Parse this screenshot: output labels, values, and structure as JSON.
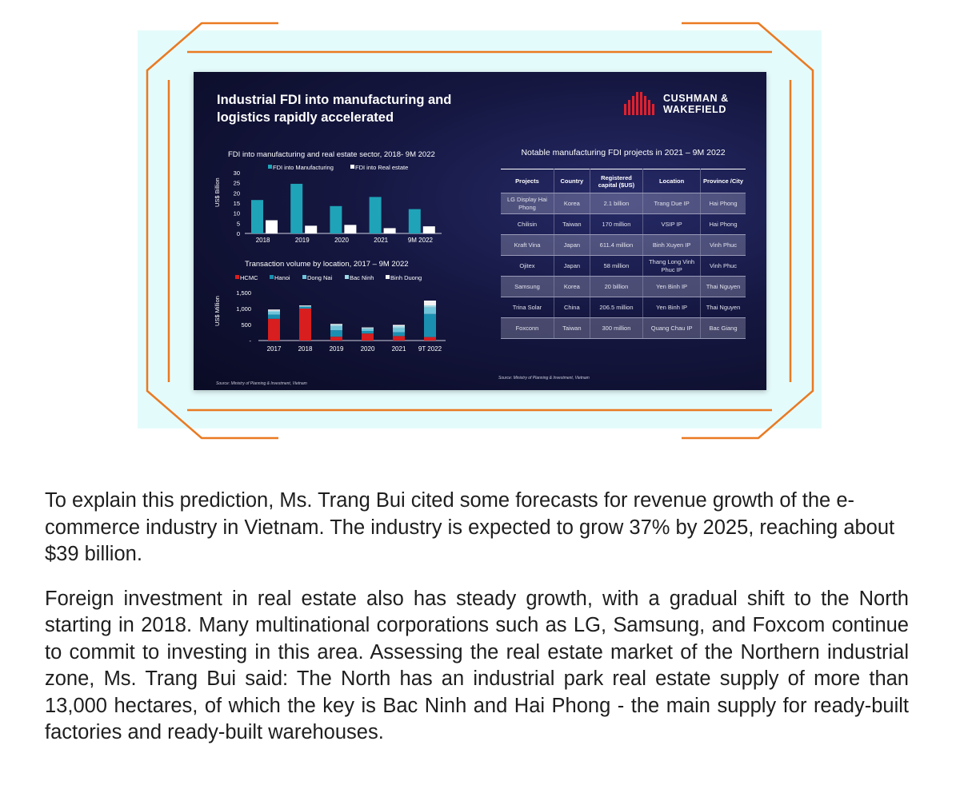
{
  "slide": {
    "title": "Industrial FDI into manufacturing and logistics rapidly accelerated",
    "logo": {
      "line1": "CUSHMAN &",
      "line2": "WAKEFIELD",
      "icon": "cushman-wakefield-bars-logo"
    },
    "source_left": "Source: Ministry of Planning & Investment, Vietnam",
    "source_right": "Source: Ministry of Planning & Investment, Vietnam"
  },
  "colors": {
    "manufacturing": "#1fa3b8",
    "real_estate": "#ffffff",
    "hcmc": "#d81e1e",
    "hanoi": "#1b8fb0",
    "dong_nai": "#6fc4d9",
    "bac_ninh": "#9fd9e6",
    "binh_duong": "#f2f2f2",
    "frame_orange": "#ea7a22",
    "logo_red": "#e2202c"
  },
  "chart_data": [
    {
      "type": "bar",
      "title": "FDI into manufacturing and real estate sector, 2018- 9M 2022",
      "ylabel": "US$ Billion",
      "xlabel": "",
      "categories": [
        "2018",
        "2019",
        "2020",
        "2021",
        "9M 2022"
      ],
      "series": [
        {
          "name": "FDI into Manufacturing",
          "values": [
            16.5,
            24.5,
            13.5,
            18.0,
            12.0
          ]
        },
        {
          "name": "FDI into Real estate",
          "values": [
            6.5,
            3.8,
            4.2,
            2.6,
            3.5
          ]
        }
      ],
      "ylim": [
        0,
        30
      ],
      "yticks": [
        "0",
        "5",
        "10",
        "15",
        "20",
        "25",
        "30"
      ],
      "legend": "top",
      "grid": false
    },
    {
      "type": "bar",
      "stacked": true,
      "title": "Transaction volume by location, 2017 – 9M 2022",
      "ylabel": "US$ Million",
      "xlabel": "",
      "categories": [
        "2017",
        "2018",
        "2019",
        "2020",
        "2021",
        "9T 2022"
      ],
      "series": [
        {
          "name": "HCMC",
          "values": [
            680,
            1000,
            120,
            220,
            140,
            110
          ]
        },
        {
          "name": "Hanoi",
          "values": [
            130,
            50,
            200,
            80,
            120,
            720
          ]
        },
        {
          "name": "Dong Nai",
          "values": [
            90,
            20,
            120,
            60,
            120,
            200
          ]
        },
        {
          "name": "Bac Ninh",
          "values": [
            30,
            10,
            50,
            30,
            70,
            70
          ]
        },
        {
          "name": "Binh Duong",
          "values": [
            40,
            20,
            30,
            20,
            40,
            150
          ]
        }
      ],
      "ylim": [
        0,
        1500
      ],
      "yticks": [
        "-",
        "500",
        "1,000",
        "1,500"
      ],
      "legend": "top",
      "grid": false
    },
    {
      "type": "table",
      "title": "Notable manufacturing FDI projects in 2021 – 9M 2022",
      "columns": [
        "Projects",
        "Country",
        "Registered capital ($US)",
        "Location",
        "Province /City"
      ],
      "rows": [
        [
          "LG Display Hai Phong",
          "Korea",
          "2.1 billion",
          "Trang Due IP",
          "Hai Phong"
        ],
        [
          "Chilisin",
          "Taiwan",
          "170 million",
          "VSIP IP",
          "Hai Phong"
        ],
        [
          "Kraft Vina",
          "Japan",
          "611.4 million",
          "Binh Xuyen IP",
          "Vinh Phuc"
        ],
        [
          "Ojitex",
          "Japan",
          "58 million",
          "Thang Long Vinh Phuc IP",
          "Vinh Phuc"
        ],
        [
          "Samsung",
          "Korea",
          "20 billion",
          "Yen Binh IP",
          "Thai Nguyen"
        ],
        [
          "Trina Solar",
          "China",
          "206.5 million",
          "Yen Binh IP",
          "Thai Nguyen"
        ],
        [
          "Foxconn",
          "Taiwan",
          "300 million",
          "Quang Chau IP",
          "Bac Giang"
        ]
      ]
    }
  ],
  "article": {
    "p1": "To explain this prediction, Ms. Trang Bui cited some forecasts for revenue growth of the e-commerce industry in Vietnam. The industry is expected to grow 37% by 2025, reaching about $39 billion.",
    "p2": "Foreign investment in real estate also has steady growth, with a gradual shift to the North starting in 2018. Many multinational corporations such as LG, Samsung, and Foxcom continue to commit to investing in this area. Assessing the real estate market of the Northern industrial zone, Ms. Trang Bui said: The North has an industrial park real estate supply of more than 13,000 hectares, of which the key is Bac Ninh and Hai Phong - the main supply for ready-built factories and ready-built warehouses."
  }
}
